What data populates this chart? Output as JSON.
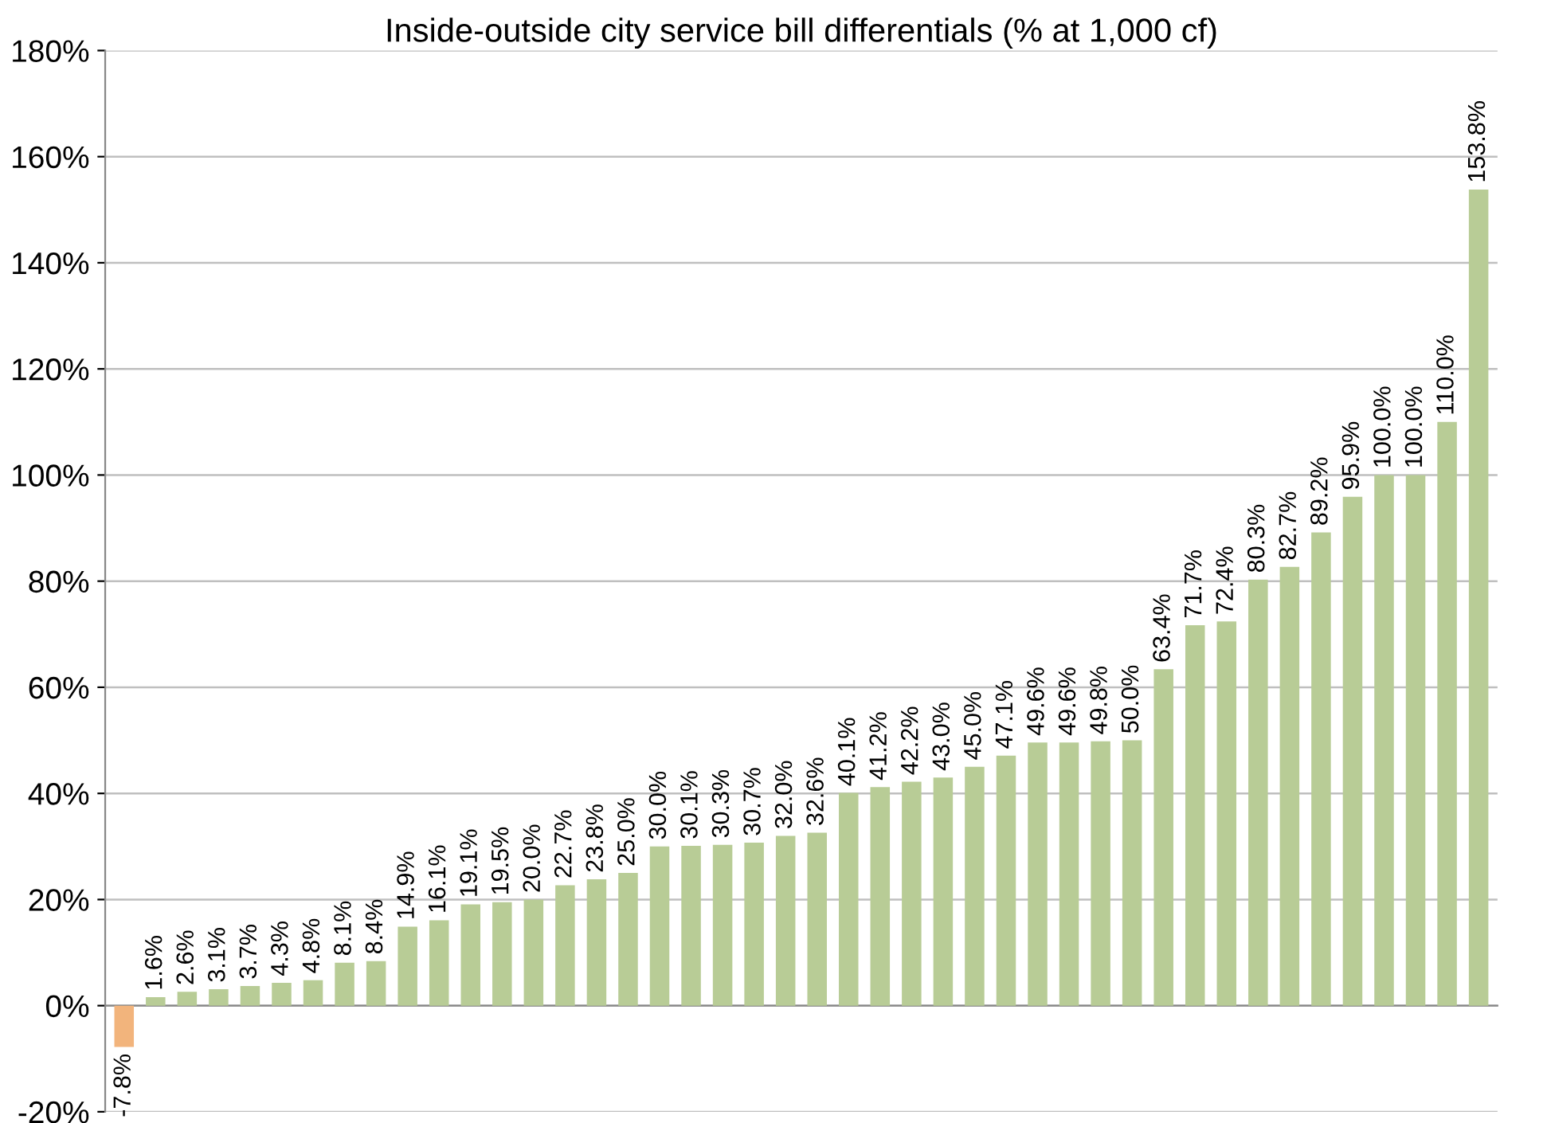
{
  "chart_data": {
    "type": "bar",
    "title": "Inside-outside city service bill differentials (% at 1,000 cf)",
    "categories": [
      null,
      null,
      null,
      null,
      null,
      null,
      null,
      null,
      null,
      null,
      null,
      null,
      null,
      null,
      null,
      null,
      null,
      null,
      null,
      null,
      null,
      null,
      null,
      null,
      null,
      null,
      null,
      null,
      null,
      null,
      null,
      null,
      null,
      null,
      null,
      null,
      null,
      null,
      null,
      null,
      null,
      null,
      null,
      null
    ],
    "values": [
      -7.8,
      1.6,
      2.6,
      3.1,
      3.7,
      4.3,
      4.8,
      8.1,
      8.4,
      14.9,
      16.1,
      19.1,
      19.5,
      20.0,
      22.7,
      23.8,
      25.0,
      30.0,
      30.1,
      30.3,
      30.7,
      32.0,
      32.6,
      40.1,
      41.2,
      42.2,
      43.0,
      45.0,
      47.1,
      49.6,
      49.6,
      49.8,
      50.0,
      63.4,
      71.7,
      72.4,
      80.3,
      82.7,
      89.2,
      95.9,
      100.0,
      100.0,
      110.0,
      153.8
    ],
    "value_labels": [
      "-7.8%",
      "1.6%",
      "2.6%",
      "3.1%",
      "3.7%",
      "4.3%",
      "4.8%",
      "8.1%",
      "8.4%",
      "14.9%",
      "16.1%",
      "19.1%",
      "19.5%",
      "20.0%",
      "22.7%",
      "23.8%",
      "25.0%",
      "30.0%",
      "30.1%",
      "30.3%",
      "30.7%",
      "32.0%",
      "32.6%",
      "40.1%",
      "41.2%",
      "42.2%",
      "43.0%",
      "45.0%",
      "47.1%",
      "49.6%",
      "49.6%",
      "49.8%",
      "50.0%",
      "63.4%",
      "71.7%",
      "72.4%",
      "80.3%",
      "82.7%",
      "89.2%",
      "95.9%",
      "100.0%",
      "100.0%",
      "110.0%",
      "153.8%"
    ],
    "colors": [
      "#f2b47c",
      "#b8cc96",
      "#b8cc96",
      "#b8cc96",
      "#b8cc96",
      "#b8cc96",
      "#b8cc96",
      "#b8cc96",
      "#b8cc96",
      "#b8cc96",
      "#b8cc96",
      "#b8cc96",
      "#b8cc96",
      "#b8cc96",
      "#b8cc96",
      "#b8cc96",
      "#b8cc96",
      "#b8cc96",
      "#b8cc96",
      "#b8cc96",
      "#b8cc96",
      "#b8cc96",
      "#b8cc96",
      "#b8cc96",
      "#b8cc96",
      "#b8cc96",
      "#b8cc96",
      "#b8cc96",
      "#b8cc96",
      "#b8cc96",
      "#b8cc96",
      "#b8cc96",
      "#b8cc96",
      "#b8cc96",
      "#b8cc96",
      "#b8cc96",
      "#b8cc96",
      "#b8cc96",
      "#b8cc96",
      "#b8cc96",
      "#b8cc96",
      "#b8cc96",
      "#b8cc96",
      "#b8cc96"
    ],
    "ylim": [
      -20,
      180
    ],
    "yticks": [
      {
        "value": -20,
        "label": "-20%"
      },
      {
        "value": 0,
        "label": "0%"
      },
      {
        "value": 20,
        "label": "20%"
      },
      {
        "value": 40,
        "label": "40%"
      },
      {
        "value": 60,
        "label": "60%"
      },
      {
        "value": 80,
        "label": "80%"
      },
      {
        "value": 100,
        "label": "100%"
      },
      {
        "value": 120,
        "label": "120%"
      },
      {
        "value": 140,
        "label": "140%"
      },
      {
        "value": 160,
        "label": "160%"
      },
      {
        "value": 180,
        "label": "180%"
      }
    ],
    "grid": "y",
    "legend": false
  }
}
